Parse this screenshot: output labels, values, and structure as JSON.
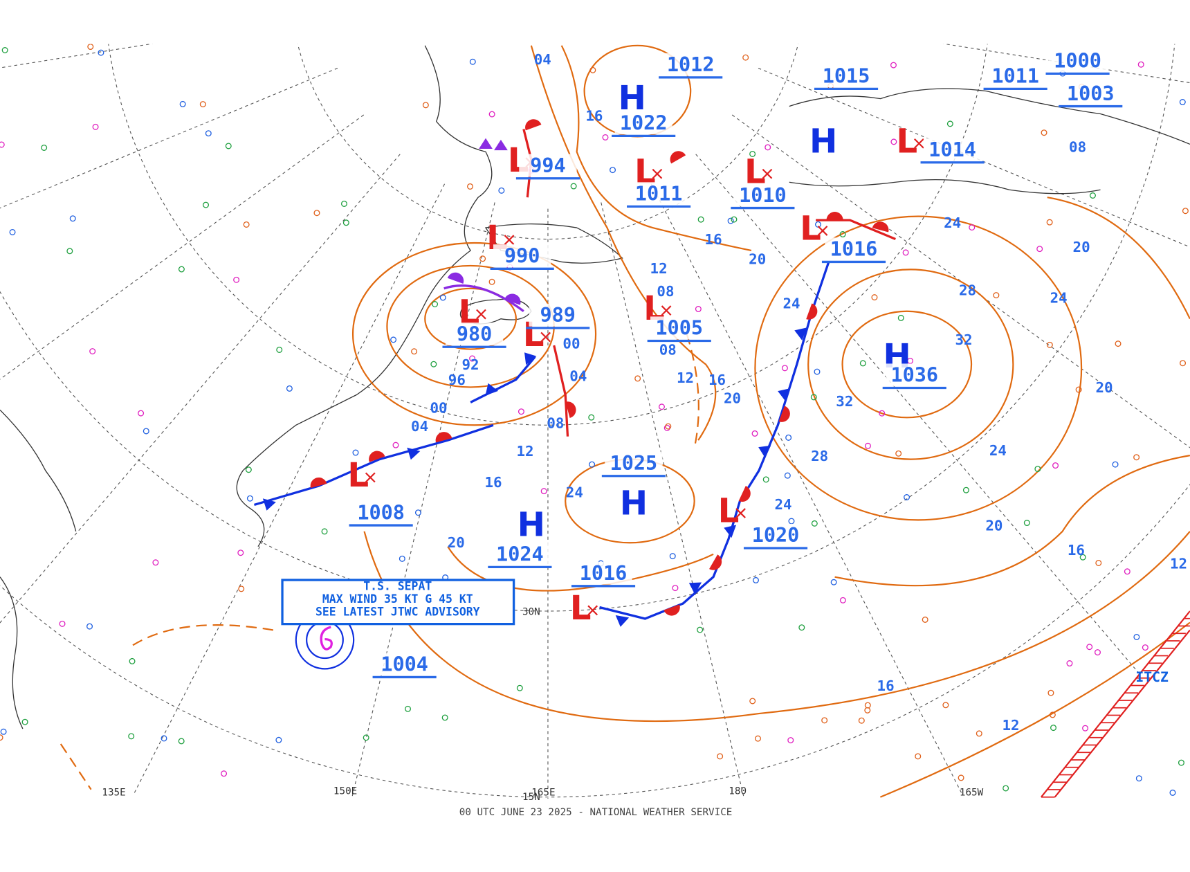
{
  "footer": "00 UTC JUNE 23 2025 - NATIONAL WEATHER SERVICE",
  "storm_box": {
    "lines": [
      "T.S. SEPAT",
      "MAX WIND 35 KT G 45 KT",
      "SEE LATEST JTWC ADVISORY"
    ]
  },
  "longitude_labels": [
    "135E",
    "150E",
    "165E",
    "180",
    "165W"
  ],
  "latitude_labels": [
    "30N",
    "15N"
  ],
  "itcz_label": "ITCZ",
  "pressure_centers": [
    {
      "symbol": "L",
      "pressure": 994
    },
    {
      "symbol": "L",
      "pressure": 990
    },
    {
      "symbol": "L",
      "pressure": 980
    },
    {
      "symbol": "L",
      "pressure": 989
    },
    {
      "symbol": "H",
      "pressure": 1022
    },
    {
      "symbol": "L",
      "pressure": 1011
    },
    {
      "symbol": "L",
      "pressure": 1005
    },
    {
      "symbol": "L",
      "pressure": 1010
    },
    {
      "symbol": "L",
      "pressure": 1016
    },
    {
      "symbol": "H",
      "pressure": 1036
    },
    {
      "symbol": "H",
      "pressure": 1025
    },
    {
      "symbol": "H",
      "pressure": 1024
    },
    {
      "symbol": "L",
      "pressure": 1020
    },
    {
      "symbol": "L",
      "pressure": 1016
    },
    {
      "symbol": "L",
      "pressure": 1008
    },
    {
      "symbol": "L",
      "pressure": 1014
    },
    {
      "symbol": "H",
      "pressure": 1015
    }
  ],
  "isolated_pressures": [
    1012,
    1004,
    1000,
    1003,
    1011
  ],
  "isobar_labels": [
    "04",
    "16",
    "08",
    "24",
    "20",
    "28",
    "24",
    "32",
    "32",
    "28",
    "20",
    "24",
    "20",
    "16",
    "12",
    "16",
    "12",
    "20",
    "16",
    "12",
    "08",
    "08",
    "12",
    "04",
    "00",
    "08",
    "00",
    "96",
    "92",
    "12",
    "16",
    "20",
    "24",
    "24",
    "24",
    "20",
    "16",
    "04"
  ]
}
